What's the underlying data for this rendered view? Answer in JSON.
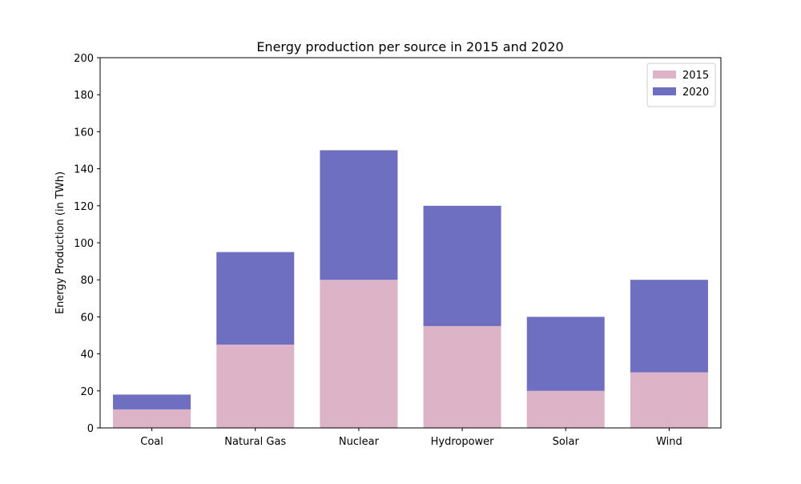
{
  "chart_data": {
    "type": "bar",
    "stacked": true,
    "title": "Energy production per source in 2015 and 2020",
    "xlabel": "",
    "ylabel": "Energy Production (in TWh)",
    "ylim": [
      0,
      200
    ],
    "yticks": [
      0,
      20,
      40,
      60,
      80,
      100,
      120,
      140,
      160,
      180,
      200
    ],
    "categories": [
      "Coal",
      "Natural Gas",
      "Nuclear",
      "Hydropower",
      "Solar",
      "Wind"
    ],
    "series": [
      {
        "name": "2015",
        "color": "#dcb3c7",
        "values": [
          10,
          45,
          80,
          55,
          20,
          30
        ]
      },
      {
        "name": "2020",
        "color": "#6f6fc1",
        "values": [
          8,
          50,
          70,
          65,
          40,
          50
        ]
      }
    ],
    "grid": false,
    "legend_position": "top-right"
  }
}
